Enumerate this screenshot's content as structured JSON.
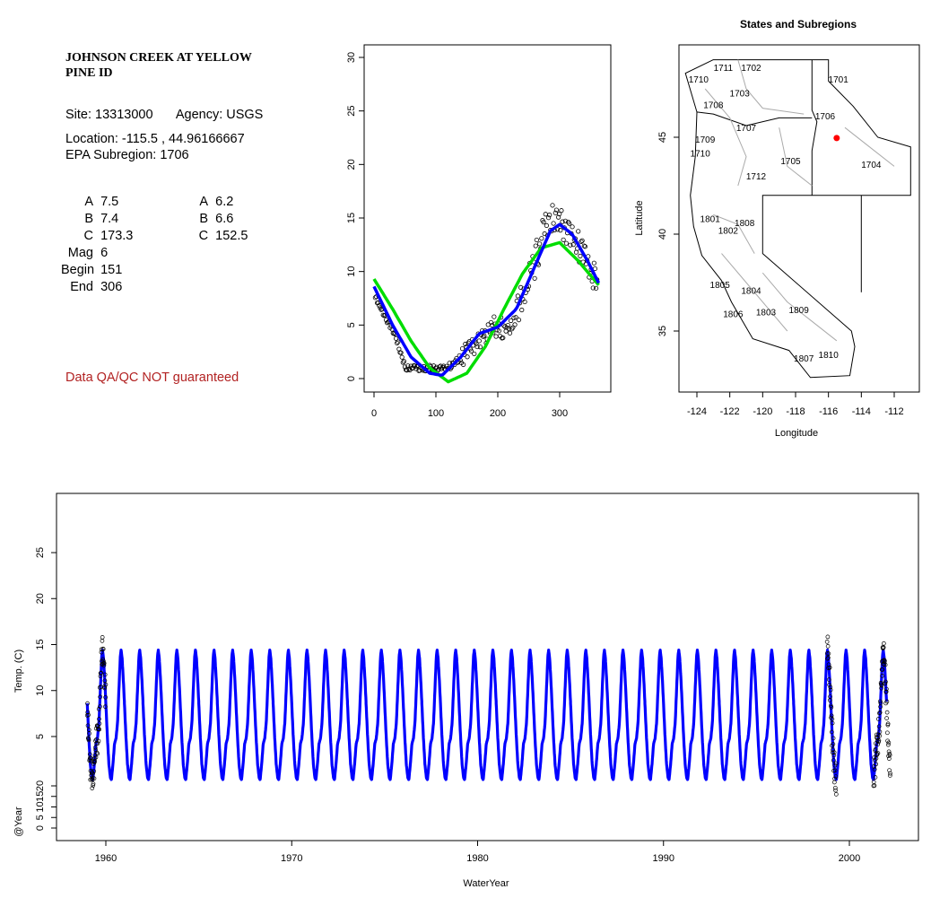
{
  "site": {
    "title_line1": "JOHNSON CREEK AT YELLOW",
    "title_line2": "PINE ID",
    "site": "Site: 13313000",
    "agency": "Agency: USGS",
    "location": "Location: -115.5 , 44.96166667",
    "subregion": "EPA Subregion: 1706",
    "qa_note": "Data QA/QC NOT guaranteed"
  },
  "params": {
    "rows": [
      {
        "label": "A",
        "v1": "7.5",
        "label2": "A",
        "v2": "6.2"
      },
      {
        "label": "B",
        "v1": "7.4",
        "label2": "B",
        "v2": "6.6"
      },
      {
        "label": "C",
        "v1": "173.3",
        "label2": "C",
        "v2": "152.5"
      },
      {
        "label": "Mag",
        "v1": "6"
      },
      {
        "label": "Begin",
        "v1": "151"
      },
      {
        "label": "End",
        "v1": "306"
      }
    ]
  },
  "chart_data": [
    {
      "type": "scatter",
      "title": "",
      "xlabel": "",
      "ylabel": "",
      "xlim": [
        0,
        365
      ],
      "ylim": [
        0,
        30
      ],
      "xticks": [
        0,
        100,
        200,
        300
      ],
      "yticks": [
        0,
        5,
        10,
        15,
        20,
        25,
        30
      ],
      "series": [
        {
          "kind": "points",
          "color": "#000000",
          "x": [
            5,
            20,
            35,
            50,
            65,
            80,
            95,
            110,
            125,
            140,
            155,
            170,
            185,
            200,
            215,
            230,
            245,
            260,
            275,
            290,
            300,
            310,
            320,
            335,
            350,
            362
          ],
          "y": [
            7.2,
            5.5,
            4.0,
            1.0,
            1.0,
            1.0,
            1.0,
            1.0,
            1.2,
            2.0,
            3.0,
            3.5,
            4.5,
            5.0,
            4.5,
            6.0,
            8.0,
            11.0,
            14.0,
            15.0,
            14.5,
            14.0,
            13.0,
            12.0,
            10.0,
            8.5
          ]
        },
        {
          "kind": "line",
          "color": "#00dd00",
          "x": [
            0,
            30,
            60,
            90,
            120,
            150,
            180,
            210,
            240,
            270,
            300,
            330,
            365
          ],
          "y": [
            9.3,
            6.5,
            3.5,
            1.0,
            -0.3,
            0.5,
            3.0,
            6.5,
            9.8,
            12.2,
            12.7,
            11.0,
            8.6
          ]
        },
        {
          "kind": "line",
          "color": "#0000ff",
          "x": [
            0,
            30,
            60,
            90,
            110,
            140,
            170,
            200,
            230,
            260,
            285,
            300,
            320,
            345,
            365
          ],
          "y": [
            8.6,
            5.0,
            2.0,
            0.5,
            0.3,
            2.0,
            4.2,
            4.8,
            6.5,
            10.5,
            13.8,
            14.4,
            13.5,
            11.0,
            8.7
          ]
        }
      ]
    },
    {
      "type": "map",
      "title": "States and Subregions",
      "xlabel": "Longitude",
      "ylabel": "Latitude",
      "xlim": [
        -125.3,
        -110.8
      ],
      "ylim": [
        32,
        50
      ],
      "xticks": [
        -124,
        -122,
        -120,
        -118,
        -116,
        -114,
        -112
      ],
      "yticks": [
        35,
        40,
        45
      ],
      "regions": [
        {
          "name": "1702",
          "lon": -120.7,
          "lat": 48.6
        },
        {
          "name": "1711",
          "lon": -122.4,
          "lat": 48.6
        },
        {
          "name": "1710",
          "lon": -123.9,
          "lat": 48.0
        },
        {
          "name": "1701",
          "lon": -115.4,
          "lat": 48.0
        },
        {
          "name": "1703",
          "lon": -121.4,
          "lat": 47.3
        },
        {
          "name": "1708",
          "lon": -123.0,
          "lat": 46.7
        },
        {
          "name": "1706",
          "lon": -116.2,
          "lat": 46.1
        },
        {
          "name": "1707",
          "lon": -121.0,
          "lat": 45.5
        },
        {
          "name": "1709",
          "lon": -123.5,
          "lat": 44.9
        },
        {
          "name": "1710",
          "lon": -123.8,
          "lat": 44.2
        },
        {
          "name": "1705",
          "lon": -118.3,
          "lat": 43.8
        },
        {
          "name": "1704",
          "lon": -113.4,
          "lat": 43.6
        },
        {
          "name": "1712",
          "lon": -120.4,
          "lat": 43.0
        },
        {
          "name": "1801",
          "lon": -123.2,
          "lat": 40.8
        },
        {
          "name": "1808",
          "lon": -121.1,
          "lat": 40.6
        },
        {
          "name": "1802",
          "lon": -122.1,
          "lat": 40.2
        },
        {
          "name": "1805",
          "lon": -122.6,
          "lat": 37.4
        },
        {
          "name": "1804",
          "lon": -120.7,
          "lat": 37.1
        },
        {
          "name": "1806",
          "lon": -121.8,
          "lat": 35.9
        },
        {
          "name": "1803",
          "lon": -119.8,
          "lat": 36.0
        },
        {
          "name": "1809",
          "lon": -117.8,
          "lat": 36.1
        },
        {
          "name": "1810",
          "lon": -116.0,
          "lat": 33.8
        },
        {
          "name": "1807",
          "lon": -117.5,
          "lat": 33.6
        }
      ],
      "site_point": {
        "lon": -115.5,
        "lat": 44.96,
        "color": "#ff0000"
      }
    },
    {
      "type": "line",
      "title": "",
      "xlabel": "WaterYear",
      "ylabel": "Temp. (C)",
      "ylabel2": "@Year",
      "xlim": [
        1957.8,
        2004.2
      ],
      "ylim": [
        -3,
        30
      ],
      "xticks": [
        1960,
        1970,
        1980,
        1990,
        2000
      ],
      "yticks": [
        5,
        10,
        15,
        20,
        25
      ],
      "yticks2": [
        0,
        5,
        10,
        15,
        20
      ],
      "year_start": 1959,
      "year_end": 2002,
      "series": [
        {
          "name": "",
          "color": "#0000ff",
          "peak": 14.5,
          "trough": 0.5
        }
      ]
    }
  ]
}
